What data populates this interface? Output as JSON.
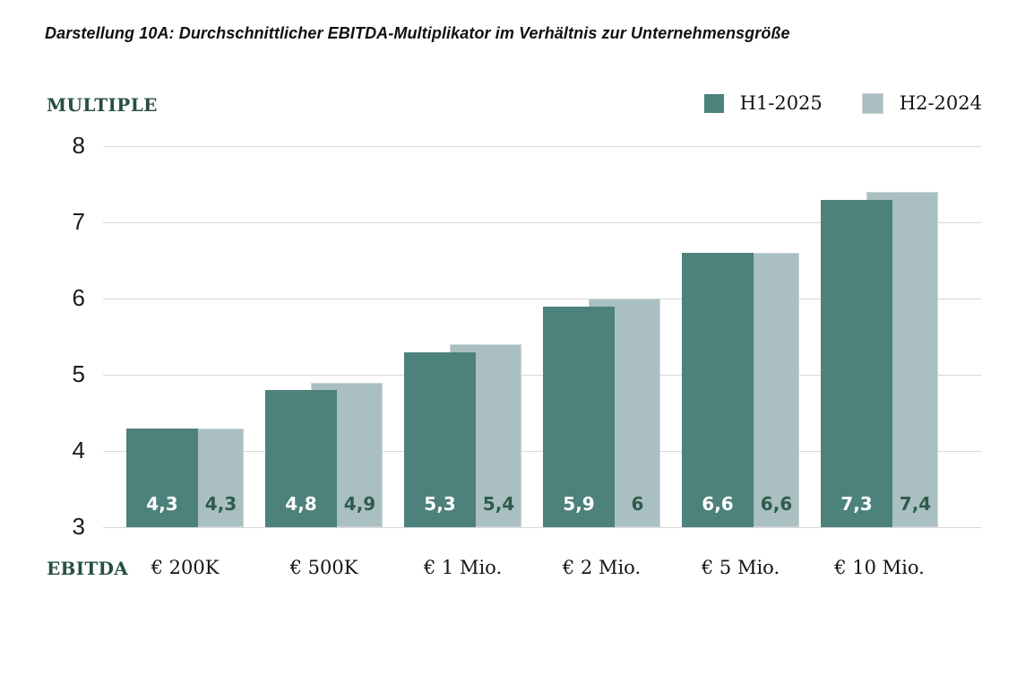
{
  "chart_data": {
    "type": "bar",
    "title": "Darstellung 10A: Durchschnittlicher EBITDA-Multiplikator im Verhältnis zur Unternehmensgröße",
    "xlabel": "EBITDA",
    "ylabel": "MULTIPLE",
    "categories": [
      "€ 200K",
      "€ 500K",
      "€ 1 Mio.",
      "€ 2 Mio.",
      "€ 5 Mio.",
      "€ 10 Mio."
    ],
    "series": [
      {
        "name": "H1-2025",
        "color": "#4d817b",
        "values": [
          4.3,
          4.8,
          5.3,
          5.9,
          6.6,
          7.3
        ],
        "labels": [
          "4,3",
          "4,8",
          "5,3",
          "5,9",
          "6,6",
          "7,3"
        ]
      },
      {
        "name": "H2-2024",
        "color": "#aabfc2",
        "values": [
          4.3,
          4.9,
          5.4,
          6,
          6.6,
          7.4
        ],
        "labels": [
          "4,3",
          "4,9",
          "5,4",
          "6",
          "6,6",
          "7,4"
        ]
      }
    ],
    "ylim": [
      3,
      8
    ],
    "y_ticks": [
      8,
      7,
      6,
      5,
      4,
      3
    ],
    "grid": true,
    "legend_position": "top-right",
    "bar_style": "overlapping, H1-2025 drawn in front of H2-2024"
  },
  "colors": {
    "series_dark": "#4d817b",
    "series_light": "#aabfc2",
    "light_bar_edge": "#c9d6d5",
    "axis_label_green": "#27503f",
    "tick_text": "#1a1a1a",
    "gridline": "#d8d8d8",
    "value_on_dark": "#ffffff",
    "value_on_light": "#2e5c4c"
  }
}
